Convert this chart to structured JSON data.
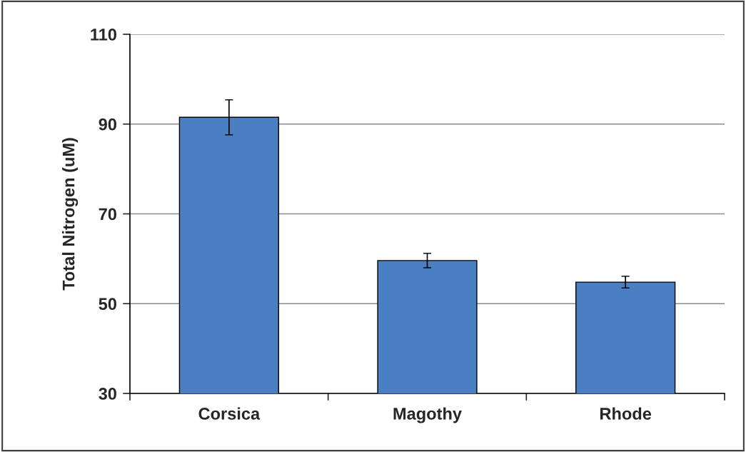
{
  "chart_data": {
    "type": "bar",
    "ylabel": "Total Nitrogen (uM)",
    "categories": [
      "Corsica",
      "Magothy",
      "Rhode"
    ],
    "values": [
      91.5,
      59.6,
      54.8
    ],
    "errors": [
      3.9,
      1.6,
      1.3
    ],
    "color": "#4a7fc1",
    "ylim": [
      30,
      110
    ],
    "yticks": [
      30,
      50,
      70,
      90,
      110
    ],
    "grid": "y"
  }
}
